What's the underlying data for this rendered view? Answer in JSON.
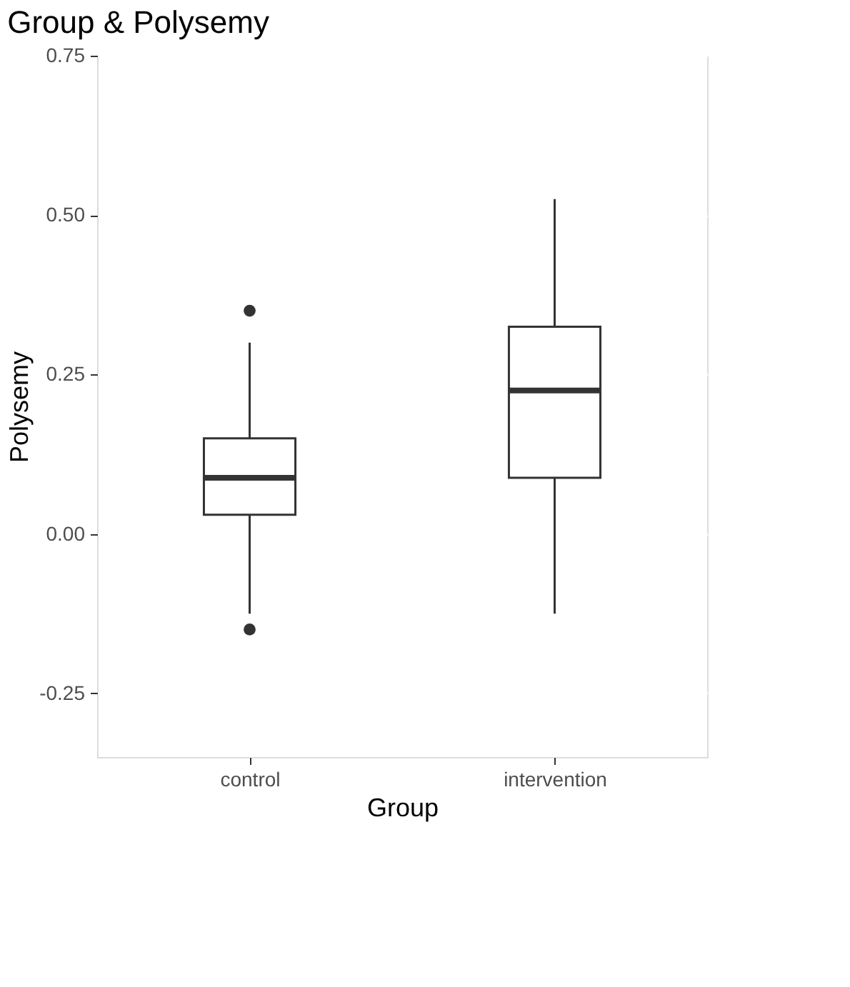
{
  "chart_data": {
    "type": "box",
    "title": "Group & Polysemy",
    "xlabel": "Group",
    "ylabel": "Polysemy",
    "categories": [
      "control",
      "intervention"
    ],
    "boxes": [
      {
        "low": -0.125,
        "q1": 0.03,
        "median": 0.088,
        "q3": 0.15,
        "high": 0.3,
        "outliers": [
          0.35,
          -0.15
        ]
      },
      {
        "low": -0.125,
        "q1": 0.088,
        "median": 0.225,
        "q3": 0.325,
        "high": 0.525
      }
    ],
    "ylim": [
      -0.35,
      0.75
    ],
    "yticks": [
      {
        "value": -0.25,
        "label": "-0.25"
      },
      {
        "value": 0,
        "label": "0.00"
      },
      {
        "value": 0.25,
        "label": "0.25"
      },
      {
        "value": 0.5,
        "label": "0.50"
      },
      {
        "value": 0.75,
        "label": "0.75"
      }
    ],
    "grid": true
  }
}
